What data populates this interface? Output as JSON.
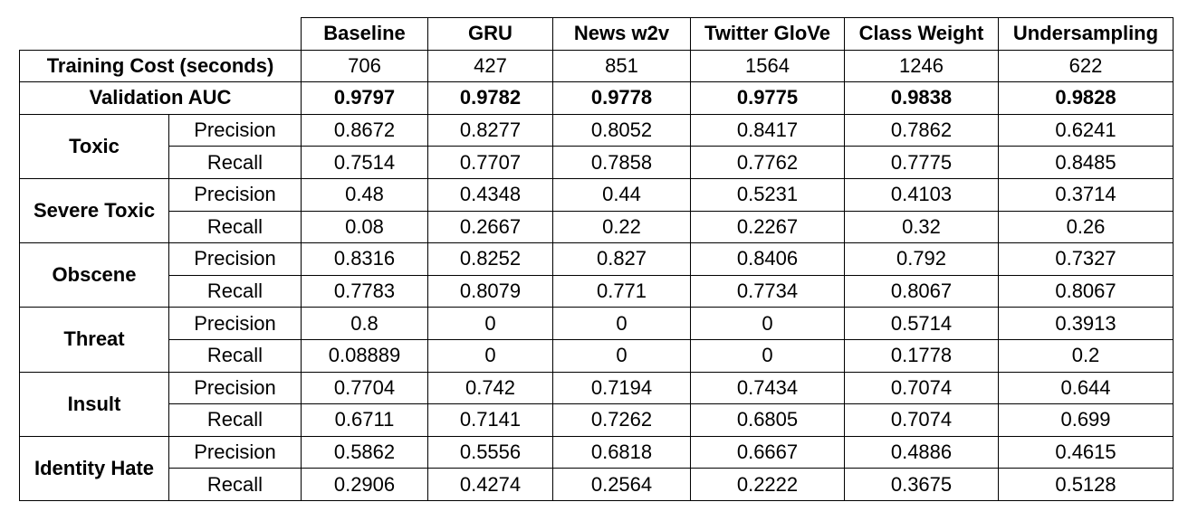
{
  "table": {
    "columns": [
      "Baseline",
      "GRU",
      "News w2v",
      "Twitter GloVe",
      "Class Weight",
      "Undersampling"
    ],
    "summary_rows": [
      {
        "label": "Training Cost (seconds)",
        "values": [
          "706",
          "427",
          "851",
          "1564",
          "1246",
          "622"
        ],
        "bold": false
      },
      {
        "label": "Validation AUC",
        "values": [
          "0.9797",
          "0.9782",
          "0.9778",
          "0.9775",
          "0.9838",
          "0.9828"
        ],
        "bold": true
      }
    ],
    "categories": [
      {
        "name": "Toxic",
        "rows": [
          {
            "metric": "Precision",
            "values": [
              "0.8672",
              "0.8277",
              "0.8052",
              "0.8417",
              "0.7862",
              "0.6241"
            ]
          },
          {
            "metric": "Recall",
            "values": [
              "0.7514",
              "0.7707",
              "0.7858",
              "0.7762",
              "0.7775",
              "0.8485"
            ]
          }
        ]
      },
      {
        "name": "Severe Toxic",
        "rows": [
          {
            "metric": "Precision",
            "values": [
              "0.48",
              "0.4348",
              "0.44",
              "0.5231",
              "0.4103",
              "0.3714"
            ]
          },
          {
            "metric": "Recall",
            "values": [
              "0.08",
              "0.2667",
              "0.22",
              "0.2267",
              "0.32",
              "0.26"
            ]
          }
        ]
      },
      {
        "name": "Obscene",
        "rows": [
          {
            "metric": "Precision",
            "values": [
              "0.8316",
              "0.8252",
              "0.827",
              "0.8406",
              "0.792",
              "0.7327"
            ]
          },
          {
            "metric": "Recall",
            "values": [
              "0.7783",
              "0.8079",
              "0.771",
              "0.7734",
              "0.8067",
              "0.8067"
            ]
          }
        ]
      },
      {
        "name": "Threat",
        "rows": [
          {
            "metric": "Precision",
            "values": [
              "0.8",
              "0",
              "0",
              "0",
              "0.5714",
              "0.3913"
            ]
          },
          {
            "metric": "Recall",
            "values": [
              "0.08889",
              "0",
              "0",
              "0",
              "0.1778",
              "0.2"
            ]
          }
        ]
      },
      {
        "name": "Insult",
        "rows": [
          {
            "metric": "Precision",
            "values": [
              "0.7704",
              "0.742",
              "0.7194",
              "0.7434",
              "0.7074",
              "0.644"
            ]
          },
          {
            "metric": "Recall",
            "values": [
              "0.6711",
              "0.7141",
              "0.7262",
              "0.6805",
              "0.7074",
              "0.699"
            ]
          }
        ]
      },
      {
        "name": "Identity Hate",
        "rows": [
          {
            "metric": "Precision",
            "values": [
              "0.5862",
              "0.5556",
              "0.6818",
              "0.6667",
              "0.4886",
              "0.4615"
            ]
          },
          {
            "metric": "Recall",
            "values": [
              "0.2906",
              "0.4274",
              "0.2564",
              "0.2222",
              "0.3675",
              "0.5128"
            ]
          }
        ]
      }
    ]
  }
}
